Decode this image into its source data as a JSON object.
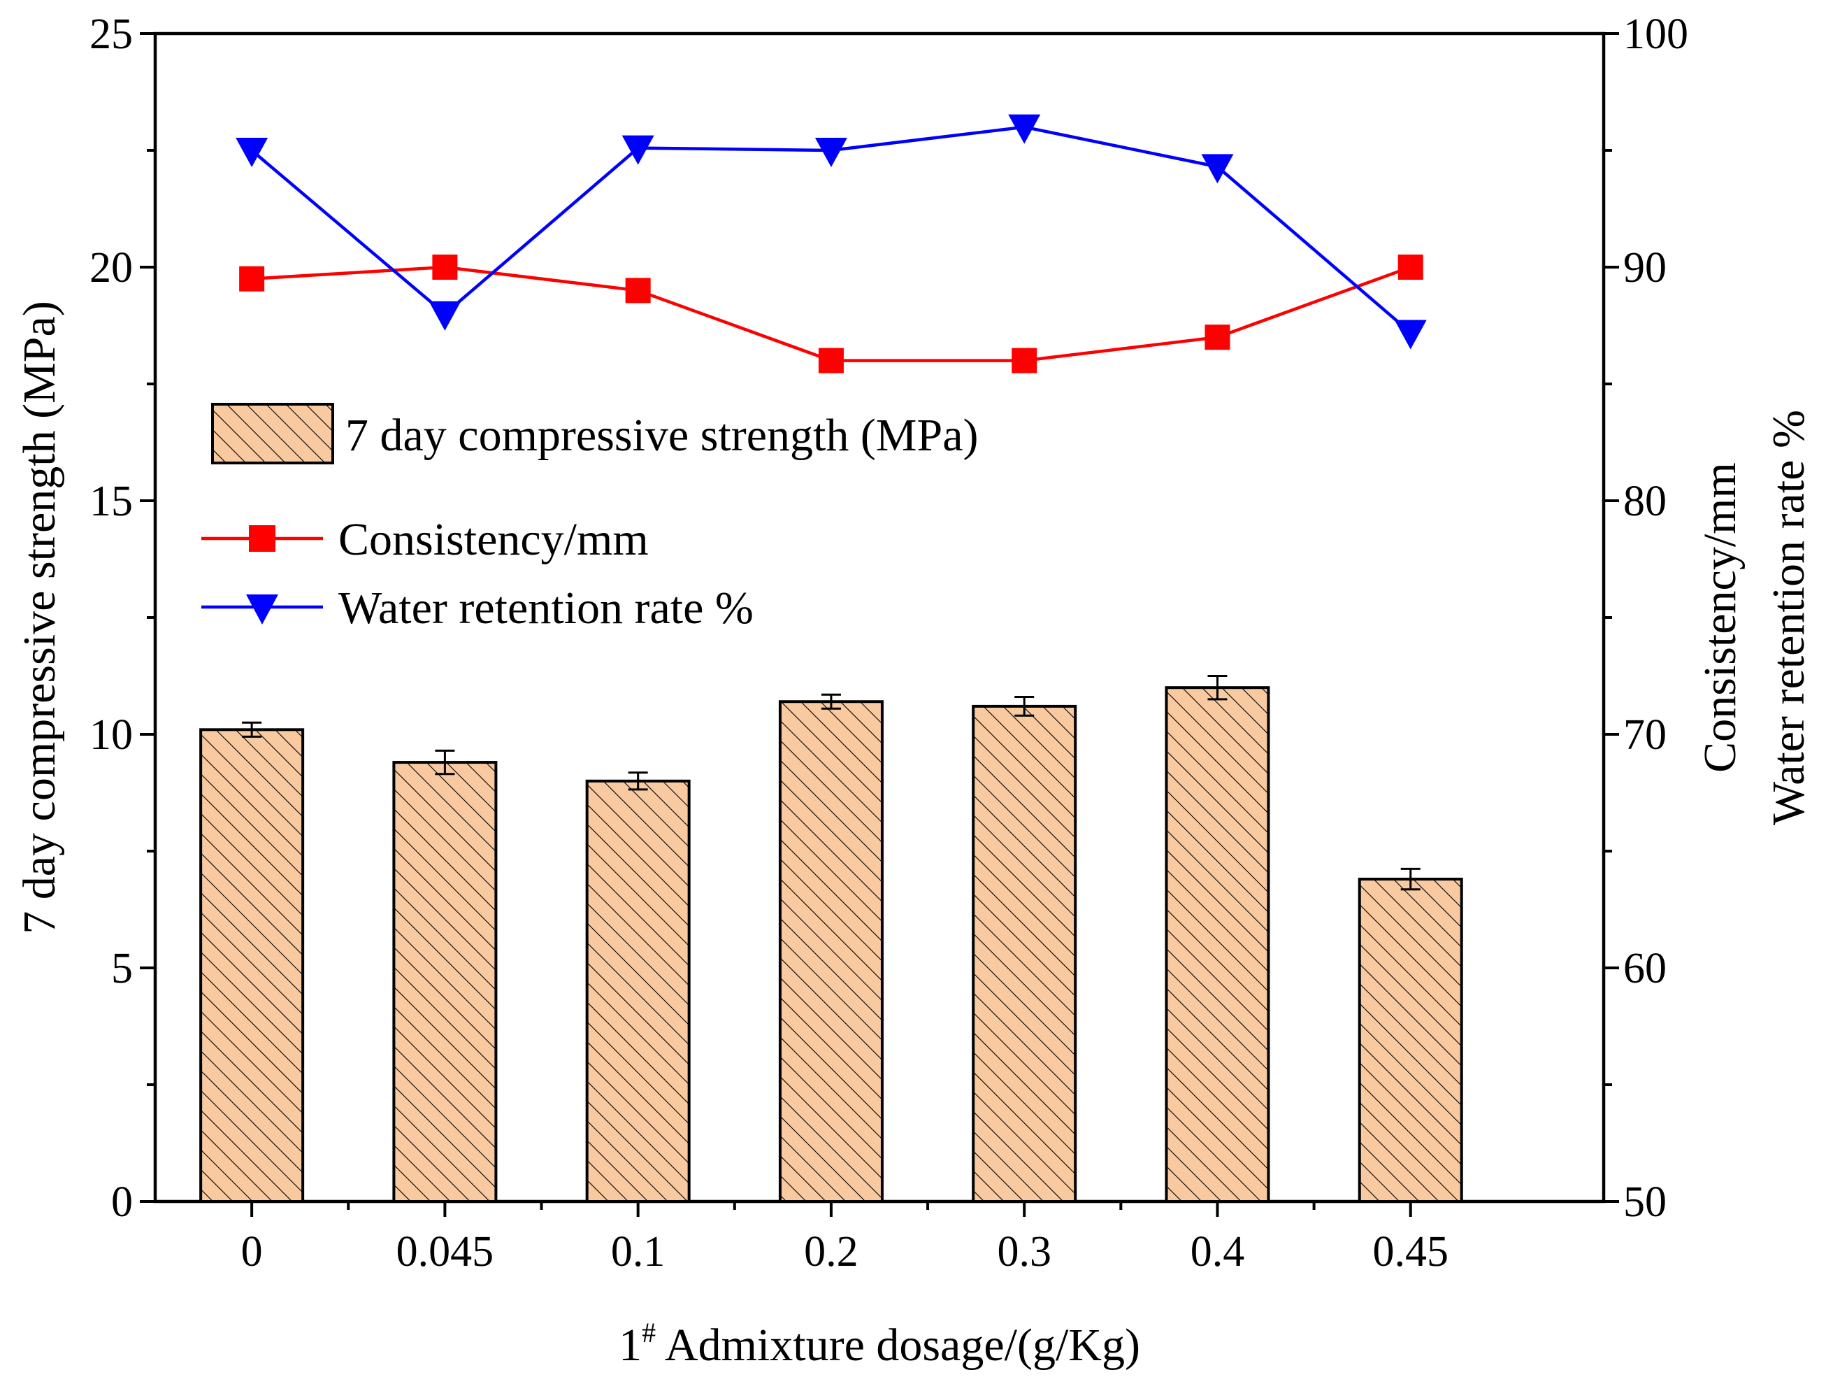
{
  "chart_data": {
    "type": "bar+line",
    "xlabel_prefix": "1",
    "xlabel_superscript": "#",
    "xlabel_rest": " Admixture dosage/(g/Kg)",
    "ylabel_left": "7 day compressive strength (MPa)",
    "ylabel_right_line1": "Consistency/mm",
    "ylabel_right_line2": "Water retention rate %",
    "categories": [
      "0",
      "0.045",
      "0.1",
      "0.2",
      "0.3",
      "0.4",
      "0.45"
    ],
    "ylim_left": [
      0,
      25
    ],
    "yticks_left": [
      "0",
      "5",
      "10",
      "15",
      "20",
      "25"
    ],
    "ylim_right": [
      50,
      100
    ],
    "yticks_right": [
      "50",
      "60",
      "70",
      "80",
      "90",
      "100"
    ],
    "bars": {
      "name": "7 day compressive strength (MPa)",
      "axis": "left",
      "values": [
        10.1,
        9.4,
        9.0,
        10.7,
        10.6,
        11.0,
        6.9
      ],
      "errors": [
        0.15,
        0.25,
        0.18,
        0.15,
        0.2,
        0.25,
        0.22
      ],
      "fill": "#f9c9a0",
      "hatch": "#000000"
    },
    "series": [
      {
        "name": "Consistency/mm",
        "axis": "right",
        "marker": "square",
        "color": "#ff0000",
        "values": [
          89.5,
          90.0,
          89.0,
          86.0,
          86.0,
          87.0,
          90.0
        ]
      },
      {
        "name": "Water retention rate %",
        "axis": "right",
        "marker": "triangle-down",
        "color": "#0000ff",
        "values": [
          95.0,
          88.0,
          95.1,
          95.0,
          96.0,
          94.3,
          87.2
        ]
      }
    ],
    "legend_position": "left, mid-upper"
  }
}
